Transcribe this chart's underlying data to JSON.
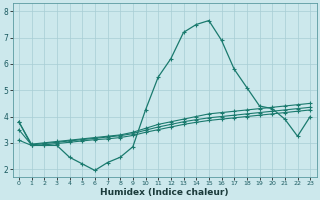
{
  "title": "",
  "xlabel": "Humidex (Indice chaleur)",
  "bg_color": "#cce8ec",
  "grid_color": "#a8cdd4",
  "line_color": "#1a7a6e",
  "xlim": [
    -0.5,
    23.5
  ],
  "ylim": [
    1.7,
    8.3
  ],
  "x": [
    0,
    1,
    2,
    3,
    4,
    5,
    6,
    7,
    8,
    9,
    10,
    11,
    12,
    13,
    14,
    15,
    16,
    17,
    18,
    19,
    20,
    21,
    22,
    23
  ],
  "line_main": [
    3.8,
    2.9,
    2.9,
    2.9,
    2.45,
    2.2,
    1.95,
    2.25,
    2.45,
    2.85,
    4.25,
    5.5,
    6.2,
    7.2,
    7.5,
    7.65,
    6.9,
    5.8,
    5.1,
    4.4,
    4.3,
    3.9,
    3.25,
    4.0
  ],
  "line_flat1": [
    3.8,
    2.95,
    3.0,
    3.05,
    3.1,
    3.15,
    3.2,
    3.25,
    3.3,
    3.4,
    3.55,
    3.7,
    3.8,
    3.9,
    4.0,
    4.1,
    4.15,
    4.2,
    4.25,
    4.3,
    4.35,
    4.4,
    4.45,
    4.5
  ],
  "line_flat2": [
    3.5,
    2.92,
    2.97,
    3.02,
    3.07,
    3.12,
    3.17,
    3.22,
    3.27,
    3.35,
    3.48,
    3.6,
    3.7,
    3.8,
    3.88,
    3.95,
    4.0,
    4.05,
    4.1,
    4.15,
    4.2,
    4.25,
    4.3,
    4.35
  ],
  "line_flat3": [
    3.1,
    2.9,
    2.92,
    2.97,
    3.02,
    3.07,
    3.12,
    3.15,
    3.2,
    3.28,
    3.4,
    3.5,
    3.6,
    3.7,
    3.78,
    3.85,
    3.9,
    3.95,
    4.0,
    4.05,
    4.1,
    4.15,
    4.2,
    4.25
  ]
}
